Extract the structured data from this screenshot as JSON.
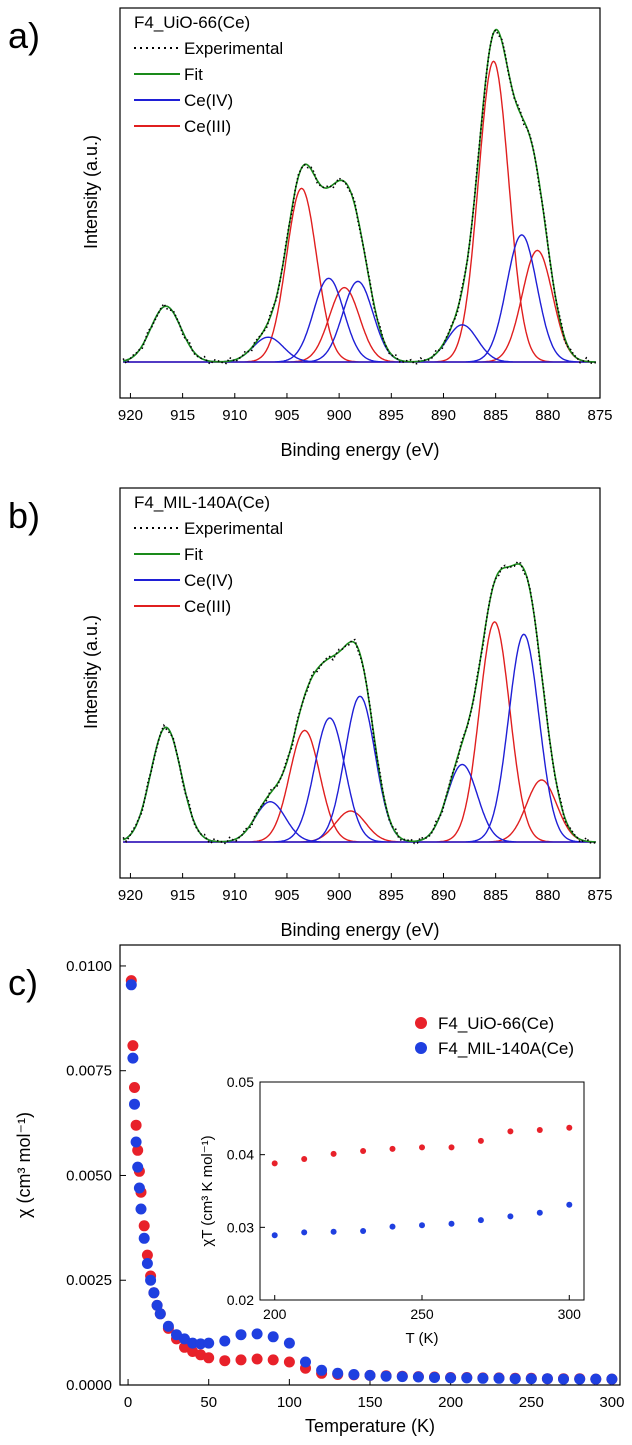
{
  "chart_data": [
    {
      "panel": "a)",
      "type": "line",
      "title": "F4_UiO-66(Ce)",
      "xlabel": "Binding energy (eV)",
      "ylabel": "Intensity (a.u.)",
      "xlim": [
        921,
        875
      ],
      "xticks": [
        920,
        915,
        910,
        905,
        900,
        895,
        890,
        885,
        880,
        875
      ],
      "legend": [
        "Experimental",
        "Fit",
        "Ce(IV)",
        "Ce(III)"
      ],
      "colors": {
        "experimental": "#000000",
        "fit": "#1a8a1a",
        "ce4": "#1f1fd6",
        "ce3": "#e01f1f"
      },
      "peaks": {
        "ce4": [
          {
            "center": 916.6,
            "height": 0.18
          },
          {
            "center": 906.8,
            "height": 0.08
          },
          {
            "center": 901.0,
            "height": 0.27
          },
          {
            "center": 898.2,
            "height": 0.26
          },
          {
            "center": 888.2,
            "height": 0.12
          },
          {
            "center": 882.5,
            "height": 0.41
          }
        ],
        "ce3": [
          {
            "center": 903.6,
            "height": 0.56
          },
          {
            "center": 899.5,
            "height": 0.24
          },
          {
            "center": 885.2,
            "height": 0.97
          },
          {
            "center": 881.0,
            "height": 0.36
          }
        ]
      },
      "fit_tail_right": 880.0
    },
    {
      "panel": "b)",
      "type": "line",
      "title": "F4_MIL-140A(Ce)",
      "xlabel": "Binding energy (eV)",
      "ylabel": "Intensity (a.u.)",
      "xlim": [
        921,
        875
      ],
      "xticks": [
        920,
        915,
        910,
        905,
        900,
        895,
        890,
        885,
        880,
        875
      ],
      "legend": [
        "Experimental",
        "Fit",
        "Ce(IV)",
        "Ce(III)"
      ],
      "colors": {
        "experimental": "#000000",
        "fit": "#1a8a1a",
        "ce4": "#1f1fd6",
        "ce3": "#e01f1f"
      },
      "peaks": {
        "ce4": [
          {
            "center": 916.6,
            "height": 0.37
          },
          {
            "center": 906.6,
            "height": 0.13
          },
          {
            "center": 900.9,
            "height": 0.4
          },
          {
            "center": 898.0,
            "height": 0.47
          },
          {
            "center": 888.2,
            "height": 0.25
          },
          {
            "center": 882.3,
            "height": 0.67
          }
        ],
        "ce3": [
          {
            "center": 903.3,
            "height": 0.36
          },
          {
            "center": 898.9,
            "height": 0.1
          },
          {
            "center": 885.1,
            "height": 0.71
          },
          {
            "center": 880.6,
            "height": 0.2
          }
        ]
      },
      "fit_tail_right": 880.0
    },
    {
      "panel": "c)",
      "type": "scatter",
      "xlabel": "Temperature (K)",
      "ylabel": "χ (cm³ mol⁻¹)",
      "xlim": [
        -5,
        305
      ],
      "ylim": [
        0,
        0.0105
      ],
      "xticks": [
        "0",
        "50",
        "100",
        "150",
        "200",
        "250",
        "300"
      ],
      "yticks": [
        "0.0000",
        "0.0025",
        "0.0050",
        "0.0075",
        "0.0100"
      ],
      "series": [
        {
          "name": "F4_UiO-66(Ce)",
          "color": "#e8212a",
          "x": [
            2,
            3,
            4,
            5,
            6,
            7,
            8,
            10,
            12,
            14,
            16,
            18,
            20,
            25,
            30,
            35,
            40,
            45,
            50,
            60,
            70,
            80,
            90,
            100,
            110,
            120,
            130,
            140,
            150,
            160,
            170,
            180,
            190,
            200,
            210,
            220,
            230,
            240,
            250,
            260,
            270,
            280,
            290,
            300
          ],
          "y": [
            0.00965,
            0.0081,
            0.0071,
            0.0062,
            0.0056,
            0.0051,
            0.0046,
            0.0038,
            0.0031,
            0.0026,
            0.0022,
            0.0019,
            0.0017,
            0.00135,
            0.0011,
            0.0009,
            0.0008,
            0.00072,
            0.00065,
            0.00058,
            0.0006,
            0.00062,
            0.0006,
            0.00055,
            0.0004,
            0.00028,
            0.00025,
            0.00024,
            0.00023,
            0.00022,
            0.00021,
            0.0002,
            0.00019,
            0.00018,
            0.00018,
            0.00017,
            0.00017,
            0.00016,
            0.00016,
            0.00015,
            0.00015,
            0.00015,
            0.00014,
            0.00014
          ]
        },
        {
          "name": "F4_MIL-140A(Ce)",
          "color": "#1f3fe0",
          "x": [
            2,
            3,
            4,
            5,
            6,
            7,
            8,
            10,
            12,
            14,
            16,
            18,
            20,
            25,
            30,
            35,
            40,
            45,
            50,
            60,
            70,
            80,
            90,
            100,
            110,
            120,
            130,
            140,
            150,
            160,
            170,
            180,
            190,
            200,
            210,
            220,
            230,
            240,
            250,
            260,
            270,
            280,
            290,
            300
          ],
          "y": [
            0.00955,
            0.0078,
            0.0067,
            0.0058,
            0.0052,
            0.0047,
            0.0042,
            0.0035,
            0.0029,
            0.0025,
            0.0022,
            0.0019,
            0.0017,
            0.0014,
            0.0012,
            0.0011,
            0.001,
            0.00098,
            0.001,
            0.00105,
            0.0012,
            0.00122,
            0.00115,
            0.001,
            0.00055,
            0.00035,
            0.00028,
            0.00025,
            0.00023,
            0.00021,
            0.0002,
            0.00019,
            0.00018,
            0.00017,
            0.00017,
            0.00016,
            0.00016,
            0.00015,
            0.00015,
            0.00015,
            0.00014,
            0.00014,
            0.00014,
            0.00014
          ]
        }
      ],
      "inset": {
        "xlabel": "T (K)",
        "ylabel": "χT (cm³ K mol⁻¹)",
        "xlim": [
          195,
          305
        ],
        "ylim": [
          0.02,
          0.05
        ],
        "xticks": [
          "200",
          "250",
          "300"
        ],
        "yticks": [
          "0.02",
          "0.03",
          "0.04",
          "0.05"
        ],
        "series": [
          {
            "name": "F4_UiO-66(Ce)",
            "color": "#e8212a",
            "x": [
              200,
              210,
              220,
              230,
              240,
              250,
              260,
              270,
              280,
              290,
              300
            ],
            "y": [
              0.0388,
              0.0394,
              0.0401,
              0.0405,
              0.0408,
              0.041,
              0.041,
              0.0419,
              0.0432,
              0.0434,
              0.0437
            ]
          },
          {
            "name": "F4_MIL-140A(Ce)",
            "color": "#1f3fe0",
            "x": [
              200,
              210,
              220,
              230,
              240,
              250,
              260,
              270,
              280,
              290,
              300
            ],
            "y": [
              0.0289,
              0.0293,
              0.0294,
              0.0295,
              0.0301,
              0.0303,
              0.0305,
              0.031,
              0.0315,
              0.032,
              0.0331
            ]
          }
        ]
      }
    }
  ]
}
